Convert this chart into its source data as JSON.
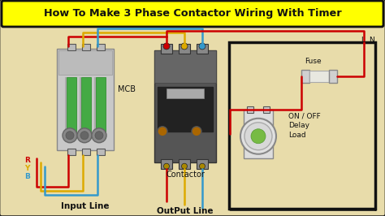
{
  "title": "How To Make 3 Phase Contactor Wiring With Timer",
  "title_bg": "#FFFF00",
  "bg_color": "#E8DCAA",
  "border_color": "#333333",
  "labels": {
    "mcb": "MCB",
    "contactor": "Contactor",
    "input_line": "Input Line",
    "output_line": "OutPut Line",
    "fuse": "Fuse",
    "on_off": "ON / OFF\nDelay\nLoad",
    "R": "R",
    "Y": "Y",
    "B": "B",
    "L": "L",
    "N": "N"
  },
  "wire_colors": {
    "red": "#CC0000",
    "yellow": "#DDAA00",
    "blue": "#3399CC",
    "black": "#111111"
  },
  "figsize": [
    4.74,
    2.66
  ],
  "dpi": 100
}
